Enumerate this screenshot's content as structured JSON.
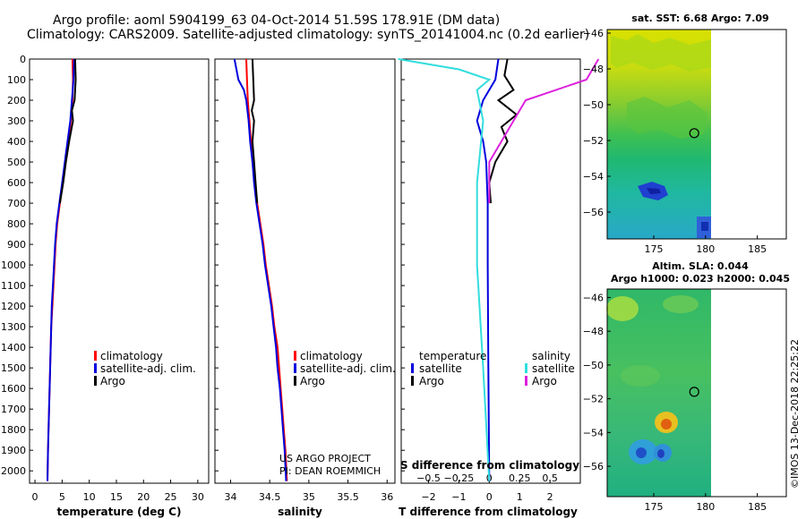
{
  "header": {
    "title_line1": "Argo profile: aoml 5904199_63 04-Oct-2014 51.59S 178.91E (DM data)",
    "title_line2": "Climatology: CARS2009. Satellite-adjusted climatology: synTS_20141004.nc (0.2d earlier)"
  },
  "colors": {
    "climatology": "#ff0000",
    "satellite": "#0000dd",
    "argo": "#000000",
    "sat_salinity": "#33dddd",
    "argo_salinity": "#dd22dd"
  },
  "depth_axis": {
    "ylim": [
      0,
      2060
    ],
    "ticks": [
      0,
      100,
      200,
      300,
      400,
      500,
      600,
      700,
      800,
      900,
      1000,
      1100,
      1200,
      1300,
      1400,
      1500,
      1600,
      1700,
      1800,
      1900,
      2000
    ]
  },
  "chart_data": [
    {
      "type": "line",
      "name": "temperature",
      "xlabel": "temperature (deg C)",
      "xlim": [
        -1,
        32
      ],
      "xticks": [
        0,
        5,
        10,
        15,
        20,
        25,
        30
      ],
      "legend": [
        "climatology",
        "satellite-adj. clim.",
        "Argo"
      ],
      "series": [
        {
          "name": "climatology",
          "color": "#ff0000",
          "points": [
            [
              6.9,
              0
            ],
            [
              7.0,
              100
            ],
            [
              6.9,
              200
            ],
            [
              6.6,
              300
            ],
            [
              6.1,
              400
            ],
            [
              5.6,
              500
            ],
            [
              5.1,
              600
            ],
            [
              4.6,
              700
            ],
            [
              4.1,
              800
            ],
            [
              3.8,
              900
            ],
            [
              3.6,
              1000
            ],
            [
              3.4,
              1100
            ],
            [
              3.2,
              1200
            ],
            [
              3.0,
              1300
            ],
            [
              2.9,
              1400
            ],
            [
              2.8,
              1500
            ],
            [
              2.7,
              1600
            ],
            [
              2.6,
              1700
            ],
            [
              2.5,
              1800
            ],
            [
              2.4,
              1900
            ],
            [
              2.3,
              2050
            ]
          ]
        },
        {
          "name": "satellite-adj. clim.",
          "color": "#0000dd",
          "points": [
            [
              7.2,
              0
            ],
            [
              7.1,
              100
            ],
            [
              6.8,
              200
            ],
            [
              6.5,
              300
            ],
            [
              6.0,
              400
            ],
            [
              5.5,
              500
            ],
            [
              5.0,
              600
            ],
            [
              4.5,
              700
            ],
            [
              4.0,
              800
            ],
            [
              3.7,
              900
            ],
            [
              3.5,
              1000
            ],
            [
              3.3,
              1100
            ],
            [
              3.1,
              1200
            ],
            [
              3.0,
              1300
            ],
            [
              2.9,
              1400
            ],
            [
              2.8,
              1500
            ],
            [
              2.7,
              1600
            ],
            [
              2.6,
              1700
            ],
            [
              2.5,
              1800
            ],
            [
              2.4,
              1900
            ],
            [
              2.3,
              2050
            ]
          ]
        },
        {
          "name": "Argo",
          "color": "#000000",
          "points": [
            [
              7.4,
              0
            ],
            [
              7.5,
              100
            ],
            [
              7.3,
              200
            ],
            [
              6.8,
              250
            ],
            [
              7.0,
              300
            ],
            [
              6.3,
              400
            ],
            [
              5.7,
              500
            ],
            [
              5.2,
              600
            ],
            [
              4.6,
              700
            ]
          ]
        }
      ]
    },
    {
      "type": "line",
      "name": "salinity",
      "xlabel": "salinity",
      "xlim": [
        33.8,
        36.1
      ],
      "xticks": [
        34,
        34.5,
        35,
        35.5,
        36
      ],
      "legend": [
        "climatology",
        "satellite-adj. clim.",
        "Argo"
      ],
      "annotations": [
        "US ARGO PROJECT",
        "PI: DEAN ROEMMICH"
      ],
      "series": [
        {
          "name": "climatology",
          "color": "#ff0000",
          "points": [
            [
              34.2,
              0
            ],
            [
              34.21,
              100
            ],
            [
              34.22,
              200
            ],
            [
              34.24,
              300
            ],
            [
              34.26,
              400
            ],
            [
              34.28,
              500
            ],
            [
              34.31,
              600
            ],
            [
              34.34,
              700
            ],
            [
              34.38,
              800
            ],
            [
              34.42,
              900
            ],
            [
              34.45,
              1000
            ],
            [
              34.49,
              1100
            ],
            [
              34.53,
              1200
            ],
            [
              34.56,
              1300
            ],
            [
              34.6,
              1400
            ],
            [
              34.62,
              1500
            ],
            [
              34.64,
              1600
            ],
            [
              34.66,
              1700
            ],
            [
              34.68,
              1800
            ],
            [
              34.7,
              1900
            ],
            [
              34.72,
              2050
            ]
          ]
        },
        {
          "name": "satellite-adj. clim.",
          "color": "#0000dd",
          "points": [
            [
              34.05,
              0
            ],
            [
              34.1,
              100
            ],
            [
              34.17,
              150
            ],
            [
              34.2,
              200
            ],
            [
              34.23,
              300
            ],
            [
              34.25,
              400
            ],
            [
              34.28,
              500
            ],
            [
              34.3,
              600
            ],
            [
              34.33,
              700
            ],
            [
              34.37,
              800
            ],
            [
              34.41,
              900
            ],
            [
              34.44,
              1000
            ],
            [
              34.48,
              1100
            ],
            [
              34.52,
              1200
            ],
            [
              34.55,
              1300
            ],
            [
              34.58,
              1400
            ],
            [
              34.6,
              1500
            ],
            [
              34.63,
              1600
            ],
            [
              34.65,
              1700
            ],
            [
              34.67,
              1800
            ],
            [
              34.69,
              1900
            ],
            [
              34.71,
              2050
            ]
          ]
        },
        {
          "name": "Argo",
          "color": "#000000",
          "points": [
            [
              34.28,
              0
            ],
            [
              34.29,
              100
            ],
            [
              34.3,
              200
            ],
            [
              34.27,
              250
            ],
            [
              34.3,
              300
            ],
            [
              34.28,
              400
            ],
            [
              34.3,
              500
            ],
            [
              34.32,
              600
            ],
            [
              34.34,
              700
            ]
          ]
        }
      ]
    },
    {
      "type": "line",
      "name": "differences",
      "xlabel": "T difference from climatology",
      "x2label": "S difference from climatology",
      "xlim": [
        -2.9,
        3.0
      ],
      "xticks": [
        -2,
        -1,
        0,
        1,
        2
      ],
      "x2lim": [
        -0.725,
        0.75
      ],
      "x2ticks": [
        -0.5,
        -0.25,
        0,
        0.25,
        0.5
      ],
      "legend_left": {
        "title": "temperature",
        "items": [
          "satellite",
          "Argo"
        ]
      },
      "legend_right": {
        "title": "salinity",
        "items": [
          "satellite",
          "Argo"
        ]
      },
      "series": [
        {
          "name": "temperature satellite",
          "color": "#0000dd",
          "points": [
            [
              0.3,
              0
            ],
            [
              0.2,
              100
            ],
            [
              -0.2,
              200
            ],
            [
              -0.4,
              300
            ],
            [
              -0.2,
              400
            ],
            [
              -0.1,
              500
            ],
            [
              -0.05,
              700
            ],
            [
              -0.05,
              1000
            ],
            [
              -0.03,
              1500
            ],
            [
              0.0,
              2050
            ]
          ]
        },
        {
          "name": "temperature Argo",
          "color": "#000000",
          "points": [
            [
              0.6,
              0
            ],
            [
              0.5,
              80
            ],
            [
              0.8,
              150
            ],
            [
              0.3,
              200
            ],
            [
              0.9,
              270
            ],
            [
              0.4,
              330
            ],
            [
              0.6,
              400
            ],
            [
              0.2,
              500
            ],
            [
              0.0,
              600
            ],
            [
              0.05,
              700
            ]
          ]
        },
        {
          "name": "salinity satellite",
          "color": "#33dddd",
          "points": [
            [
              -0.75,
              0
            ],
            [
              -0.25,
              50
            ],
            [
              0.0,
              100
            ],
            [
              -0.1,
              150
            ],
            [
              -0.05,
              300
            ],
            [
              -0.1,
              600
            ],
            [
              -0.1,
              1000
            ],
            [
              -0.05,
              1500
            ],
            [
              0.0,
              2050
            ]
          ]
        },
        {
          "name": "salinity Argo",
          "color": "#dd22dd",
          "points": [
            [
              0.9,
              0
            ],
            [
              0.8,
              100
            ],
            [
              0.3,
              200
            ],
            [
              0.2,
              300
            ],
            [
              0.1,
              400
            ],
            [
              0.0,
              500
            ],
            [
              0.0,
              700
            ]
          ]
        }
      ]
    },
    {
      "type": "heatmap",
      "name": "sst-map",
      "title": "sat. SST: 6.68 Argo: 7.09",
      "xlim": [
        170.5,
        187.8
      ],
      "ylim": [
        -57.5,
        -45.8
      ],
      "xticks": [
        175,
        180,
        185
      ],
      "yticks": [
        -46,
        -48,
        -50,
        -52,
        -54,
        -56
      ],
      "data_extent": {
        "x": [
          170.5,
          180.5
        ],
        "y": [
          -57.5,
          -45.8
        ]
      },
      "marker": {
        "lon": 178.91,
        "lat": -51.59
      }
    },
    {
      "type": "heatmap",
      "name": "sla-map",
      "title": "Altim. SLA: 0.044",
      "subtitle": "Argo h1000: 0.023 h2000: 0.045",
      "xlim": [
        170.5,
        187.8
      ],
      "ylim": [
        -57.8,
        -45.5
      ],
      "xticks": [
        175,
        180,
        185
      ],
      "yticks": [
        -46,
        -48,
        -50,
        -52,
        -54,
        -56
      ],
      "data_extent": {
        "x": [
          170.5,
          180.5
        ],
        "y": [
          -57.8,
          -45.5
        ]
      },
      "marker": {
        "lon": 178.91,
        "lat": -51.59
      }
    }
  ],
  "footer": {
    "watermark": "©IMOS 13-Dec-2018 22:25:22"
  }
}
